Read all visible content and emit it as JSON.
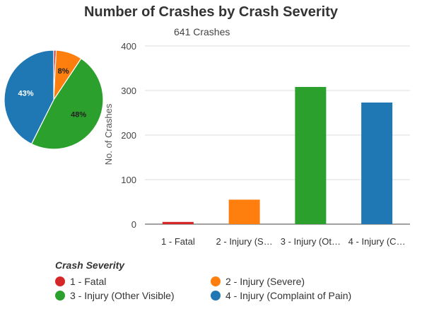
{
  "chart_data": [
    {
      "type": "pie",
      "title": "Number of Crashes by Crash Severity",
      "subtitle": "641 Crashes",
      "categories": [
        "1 - Fatal",
        "2 - Injury (Severe)",
        "3 - Injury (Other Visible)",
        "4 - Injury (Complaint of Pain)"
      ],
      "values": [
        5,
        55,
        308,
        273
      ],
      "slice_labels": [
        "",
        "8%",
        "48%",
        "43%"
      ],
      "colors": [
        "#d62728",
        "#ff7f0e",
        "#2ca02c",
        "#1f77b4"
      ]
    },
    {
      "type": "bar",
      "categories": [
        "1 - Fatal",
        "2 - Injury (S…",
        "3 - Injury (Ot…",
        "4 - Injury (C…"
      ],
      "values": [
        5,
        55,
        308,
        273
      ],
      "colors": [
        "#d62728",
        "#ff7f0e",
        "#2ca02c",
        "#1f77b4"
      ],
      "ylabel": "No. of Crashes",
      "ylim": [
        0,
        400
      ],
      "yticks": [
        "0",
        "100",
        "200",
        "300",
        "400"
      ],
      "grid": true
    }
  ],
  "legend": {
    "title": "Crash Severity",
    "items": [
      {
        "label": "1 - Fatal",
        "color": "#d62728"
      },
      {
        "label": "2 - Injury (Severe)",
        "color": "#ff7f0e"
      },
      {
        "label": "3 - Injury (Other Visible)",
        "color": "#2ca02c"
      },
      {
        "label": "4 - Injury (Complaint of Pain)",
        "color": "#1f77b4"
      }
    ]
  }
}
